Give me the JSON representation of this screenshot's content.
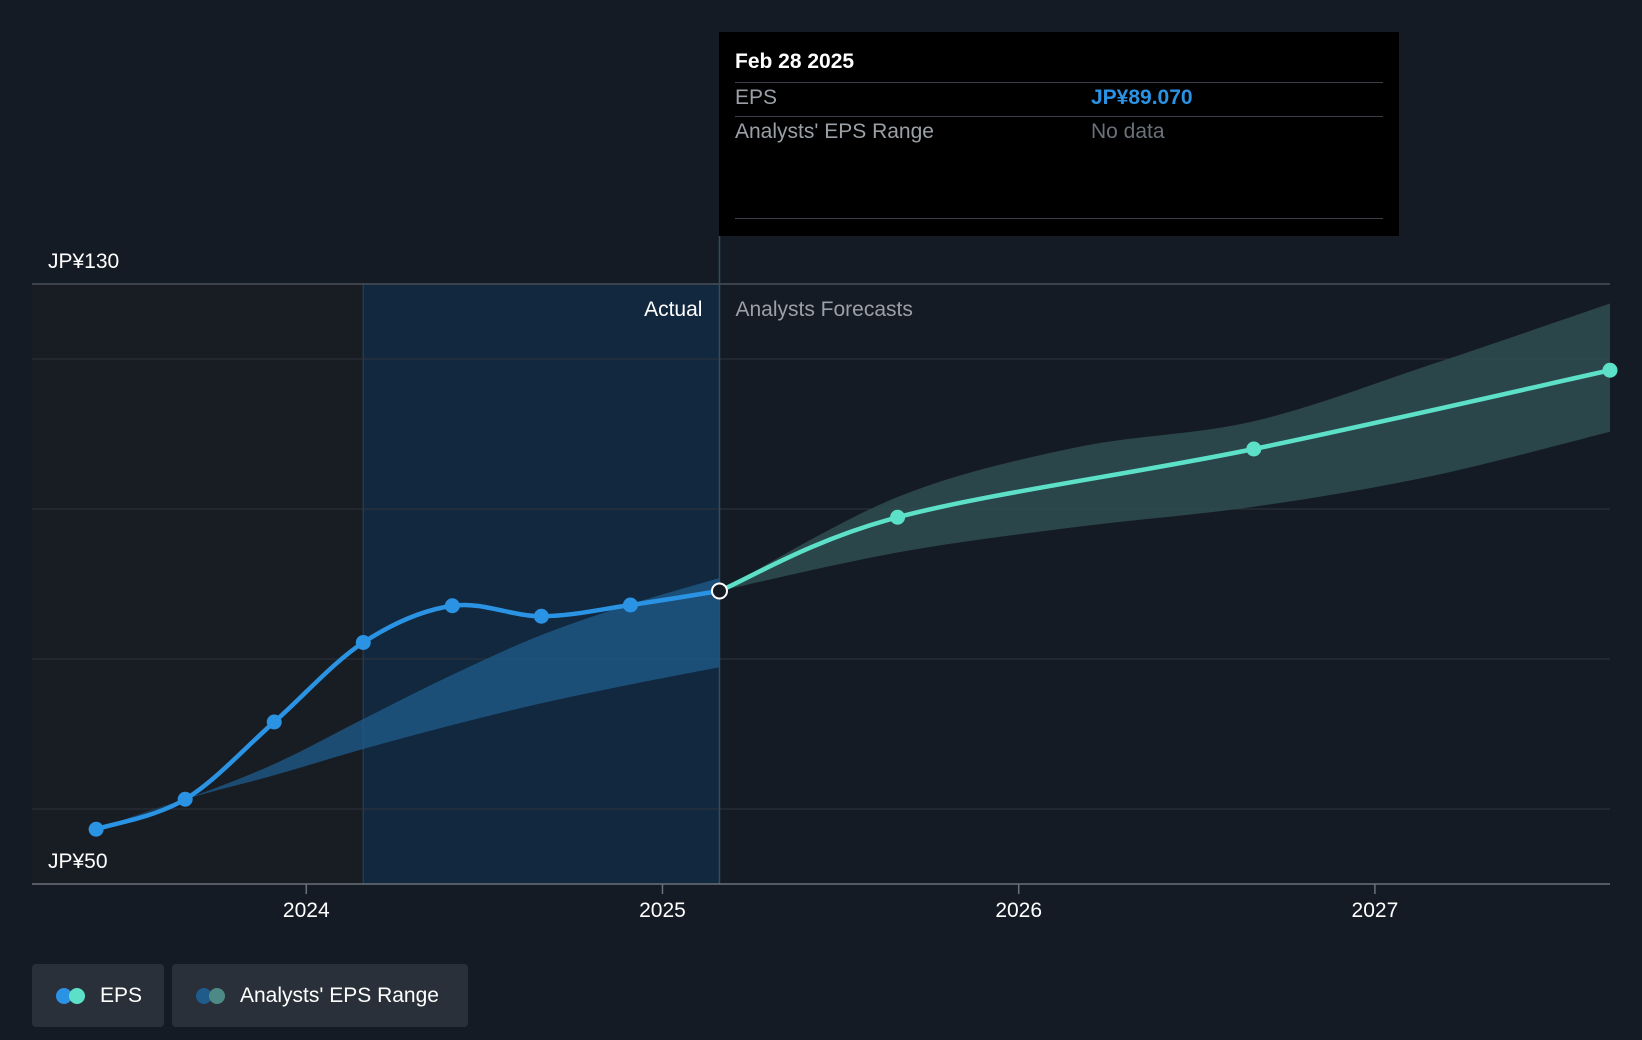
{
  "tooltip": {
    "date": "Feb 28 2025",
    "eps_label": "EPS",
    "eps_value": "JP¥89.070",
    "range_label": "Analysts' EPS Range",
    "range_value": "No data"
  },
  "legend": {
    "eps_label": "EPS",
    "range_label": "Analysts' EPS Range"
  },
  "colors": {
    "background": "#151b24",
    "actual_line": "#2b93e3",
    "forecast_line": "#5de0c8",
    "forecast_band": "#2e4e51",
    "actual_band": "#1f5c8c",
    "actual_region": "#12283f",
    "tooltip_value": "#2b93e3"
  },
  "chart_data": {
    "type": "line",
    "title": "",
    "xlabel": "",
    "ylabel": "",
    "ylim": [
      50,
      130
    ],
    "y_tick_labels": [
      "JP¥130",
      "JP¥50"
    ],
    "x_ticks": [
      {
        "label": "2024",
        "x": 2024.0
      },
      {
        "label": "2025",
        "x": 2025.0
      },
      {
        "label": "2026",
        "x": 2026.0
      },
      {
        "label": "2027",
        "x": 2027.0
      }
    ],
    "x_range": [
      2023.23,
      2027.66
    ],
    "divider_x": 2025.16,
    "actual_label": "Actual",
    "forecast_label": "Analysts Forecasts",
    "series": [
      {
        "name": "EPS (Actual)",
        "points": [
          [
            2023.41,
            57.3
          ],
          [
            2023.66,
            61.3
          ],
          [
            2023.91,
            71.6
          ],
          [
            2024.16,
            82.2
          ],
          [
            2024.41,
            87.1
          ],
          [
            2024.66,
            85.7
          ],
          [
            2024.91,
            87.2
          ],
          [
            2025.16,
            89.07
          ]
        ]
      },
      {
        "name": "EPS (Forecast)",
        "points": [
          [
            2025.16,
            89.07
          ],
          [
            2025.66,
            98.9
          ],
          [
            2026.66,
            108.0
          ],
          [
            2027.66,
            118.5
          ]
        ]
      }
    ],
    "ranges": [
      {
        "name": "Analysts' EPS Range (Past)",
        "x": [
          2023.41,
          2023.66,
          2023.91,
          2024.16,
          2024.41,
          2024.66,
          2024.91,
          2025.16
        ],
        "low": [
          57.3,
          61.3,
          64.5,
          68.0,
          71.2,
          74.1,
          76.6,
          78.9
        ],
        "high": [
          57.3,
          61.3,
          66.0,
          72.0,
          77.9,
          83.2,
          87.3,
          90.8
        ]
      },
      {
        "name": "Analysts' EPS Range (Forecast)",
        "x": [
          2025.16,
          2025.66,
          2026.16,
          2026.66,
          2027.16,
          2027.66
        ],
        "low": [
          89.07,
          94.2,
          97.6,
          100.3,
          104.4,
          110.3
        ],
        "high": [
          89.07,
          101.6,
          108.2,
          111.7,
          119.3,
          127.4
        ]
      }
    ]
  }
}
